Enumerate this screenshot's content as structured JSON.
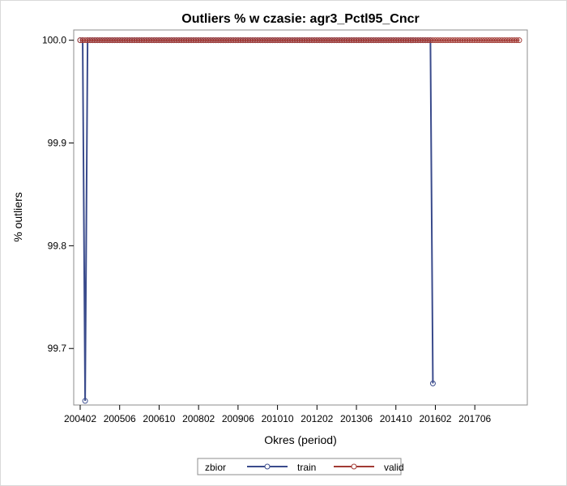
{
  "chart_data": {
    "type": "line",
    "title": "Outliers % w czasie: agr3_Pctl95_Cncr",
    "xlabel": "Okres (period)",
    "ylabel": "% outliers",
    "ylim": [
      99.645,
      100.01
    ],
    "yticks": [
      "99.7",
      "99.8",
      "99.9",
      "100.0"
    ],
    "xticks": [
      "200402",
      "200506",
      "200610",
      "200802",
      "200906",
      "201010",
      "201202",
      "201306",
      "201410",
      "201602",
      "201706"
    ],
    "x_start": "200402",
    "x_end": "201812",
    "n_periods": 179,
    "legend": {
      "title": "zbior",
      "placement": "bottom"
    },
    "series": [
      {
        "name": "train",
        "color": "#3a4b8c",
        "default_value": 100.0,
        "exceptions": [
          {
            "period": "200404",
            "value": 99.649
          },
          {
            "period": "201601",
            "value": 99.666
          }
        ],
        "end_period": "201601"
      },
      {
        "name": "valid",
        "color": "#a23a34",
        "default_value": 100.0,
        "exceptions": [],
        "end_period": "201812"
      }
    ]
  }
}
